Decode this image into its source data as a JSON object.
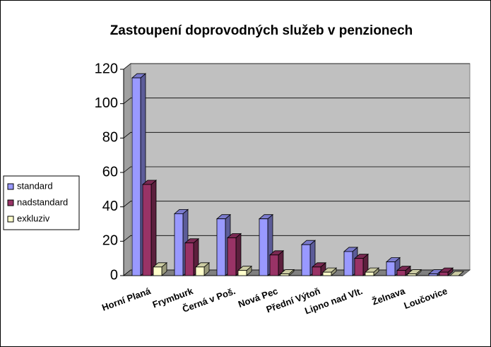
{
  "chart_data": {
    "type": "bar3d",
    "title": "Zastoupení doprovodných služeb v penzionech",
    "categories": [
      "Horní Planá",
      "Frymburk",
      "Černá v Poš.",
      "Nová Pec",
      "Přední Výtoň",
      "Lipno nad Vlt.",
      "Želnava",
      "Loučovice"
    ],
    "series": [
      {
        "name": "standard",
        "color": "#9999ff",
        "values": [
          115,
          36,
          33,
          33,
          18,
          14,
          8,
          1
        ]
      },
      {
        "name": "nadstandard",
        "color": "#993366",
        "values": [
          53,
          19,
          22,
          12,
          5,
          10,
          3,
          2
        ]
      },
      {
        "name": "exkluziv",
        "color": "#ffffcc",
        "values": [
          5,
          5,
          3,
          1,
          2,
          2,
          1,
          0
        ]
      }
    ],
    "ylim": [
      0,
      120
    ],
    "yticks": [
      0,
      20,
      40,
      60,
      80,
      100,
      120
    ],
    "grid": true,
    "legend": "left"
  }
}
